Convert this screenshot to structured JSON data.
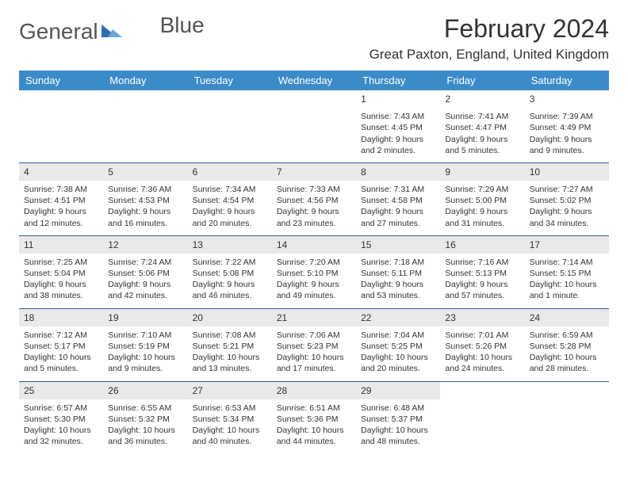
{
  "logo": {
    "textA": "General",
    "textB": "Blue"
  },
  "title": "February 2024",
  "location": "Great Paxton, England, United Kingdom",
  "colors": {
    "header_bg": "#3b8bc8",
    "header_text": "#ffffff",
    "daynum_bg": "#e9e9e9",
    "rule": "#2f5f8f",
    "text": "#333333",
    "logo_accent": "#2f6fb0"
  },
  "dayHeaders": [
    "Sunday",
    "Monday",
    "Tuesday",
    "Wednesday",
    "Thursday",
    "Friday",
    "Saturday"
  ],
  "weeks": [
    [
      {
        "n": "",
        "l1": "",
        "l2": "",
        "l3": "",
        "l4": ""
      },
      {
        "n": "",
        "l1": "",
        "l2": "",
        "l3": "",
        "l4": ""
      },
      {
        "n": "",
        "l1": "",
        "l2": "",
        "l3": "",
        "l4": ""
      },
      {
        "n": "",
        "l1": "",
        "l2": "",
        "l3": "",
        "l4": ""
      },
      {
        "n": "1",
        "l1": "Sunrise: 7:43 AM",
        "l2": "Sunset: 4:45 PM",
        "l3": "Daylight: 9 hours",
        "l4": "and 2 minutes."
      },
      {
        "n": "2",
        "l1": "Sunrise: 7:41 AM",
        "l2": "Sunset: 4:47 PM",
        "l3": "Daylight: 9 hours",
        "l4": "and 5 minutes."
      },
      {
        "n": "3",
        "l1": "Sunrise: 7:39 AM",
        "l2": "Sunset: 4:49 PM",
        "l3": "Daylight: 9 hours",
        "l4": "and 9 minutes."
      }
    ],
    [
      {
        "n": "4",
        "l1": "Sunrise: 7:38 AM",
        "l2": "Sunset: 4:51 PM",
        "l3": "Daylight: 9 hours",
        "l4": "and 12 minutes."
      },
      {
        "n": "5",
        "l1": "Sunrise: 7:36 AM",
        "l2": "Sunset: 4:53 PM",
        "l3": "Daylight: 9 hours",
        "l4": "and 16 minutes."
      },
      {
        "n": "6",
        "l1": "Sunrise: 7:34 AM",
        "l2": "Sunset: 4:54 PM",
        "l3": "Daylight: 9 hours",
        "l4": "and 20 minutes."
      },
      {
        "n": "7",
        "l1": "Sunrise: 7:33 AM",
        "l2": "Sunset: 4:56 PM",
        "l3": "Daylight: 9 hours",
        "l4": "and 23 minutes."
      },
      {
        "n": "8",
        "l1": "Sunrise: 7:31 AM",
        "l2": "Sunset: 4:58 PM",
        "l3": "Daylight: 9 hours",
        "l4": "and 27 minutes."
      },
      {
        "n": "9",
        "l1": "Sunrise: 7:29 AM",
        "l2": "Sunset: 5:00 PM",
        "l3": "Daylight: 9 hours",
        "l4": "and 31 minutes."
      },
      {
        "n": "10",
        "l1": "Sunrise: 7:27 AM",
        "l2": "Sunset: 5:02 PM",
        "l3": "Daylight: 9 hours",
        "l4": "and 34 minutes."
      }
    ],
    [
      {
        "n": "11",
        "l1": "Sunrise: 7:25 AM",
        "l2": "Sunset: 5:04 PM",
        "l3": "Daylight: 9 hours",
        "l4": "and 38 minutes."
      },
      {
        "n": "12",
        "l1": "Sunrise: 7:24 AM",
        "l2": "Sunset: 5:06 PM",
        "l3": "Daylight: 9 hours",
        "l4": "and 42 minutes."
      },
      {
        "n": "13",
        "l1": "Sunrise: 7:22 AM",
        "l2": "Sunset: 5:08 PM",
        "l3": "Daylight: 9 hours",
        "l4": "and 46 minutes."
      },
      {
        "n": "14",
        "l1": "Sunrise: 7:20 AM",
        "l2": "Sunset: 5:10 PM",
        "l3": "Daylight: 9 hours",
        "l4": "and 49 minutes."
      },
      {
        "n": "15",
        "l1": "Sunrise: 7:18 AM",
        "l2": "Sunset: 5:11 PM",
        "l3": "Daylight: 9 hours",
        "l4": "and 53 minutes."
      },
      {
        "n": "16",
        "l1": "Sunrise: 7:16 AM",
        "l2": "Sunset: 5:13 PM",
        "l3": "Daylight: 9 hours",
        "l4": "and 57 minutes."
      },
      {
        "n": "17",
        "l1": "Sunrise: 7:14 AM",
        "l2": "Sunset: 5:15 PM",
        "l3": "Daylight: 10 hours",
        "l4": "and 1 minute."
      }
    ],
    [
      {
        "n": "18",
        "l1": "Sunrise: 7:12 AM",
        "l2": "Sunset: 5:17 PM",
        "l3": "Daylight: 10 hours",
        "l4": "and 5 minutes."
      },
      {
        "n": "19",
        "l1": "Sunrise: 7:10 AM",
        "l2": "Sunset: 5:19 PM",
        "l3": "Daylight: 10 hours",
        "l4": "and 9 minutes."
      },
      {
        "n": "20",
        "l1": "Sunrise: 7:08 AM",
        "l2": "Sunset: 5:21 PM",
        "l3": "Daylight: 10 hours",
        "l4": "and 13 minutes."
      },
      {
        "n": "21",
        "l1": "Sunrise: 7:06 AM",
        "l2": "Sunset: 5:23 PM",
        "l3": "Daylight: 10 hours",
        "l4": "and 17 minutes."
      },
      {
        "n": "22",
        "l1": "Sunrise: 7:04 AM",
        "l2": "Sunset: 5:25 PM",
        "l3": "Daylight: 10 hours",
        "l4": "and 20 minutes."
      },
      {
        "n": "23",
        "l1": "Sunrise: 7:01 AM",
        "l2": "Sunset: 5:26 PM",
        "l3": "Daylight: 10 hours",
        "l4": "and 24 minutes."
      },
      {
        "n": "24",
        "l1": "Sunrise: 6:59 AM",
        "l2": "Sunset: 5:28 PM",
        "l3": "Daylight: 10 hours",
        "l4": "and 28 minutes."
      }
    ],
    [
      {
        "n": "25",
        "l1": "Sunrise: 6:57 AM",
        "l2": "Sunset: 5:30 PM",
        "l3": "Daylight: 10 hours",
        "l4": "and 32 minutes."
      },
      {
        "n": "26",
        "l1": "Sunrise: 6:55 AM",
        "l2": "Sunset: 5:32 PM",
        "l3": "Daylight: 10 hours",
        "l4": "and 36 minutes."
      },
      {
        "n": "27",
        "l1": "Sunrise: 6:53 AM",
        "l2": "Sunset: 5:34 PM",
        "l3": "Daylight: 10 hours",
        "l4": "and 40 minutes."
      },
      {
        "n": "28",
        "l1": "Sunrise: 6:51 AM",
        "l2": "Sunset: 5:36 PM",
        "l3": "Daylight: 10 hours",
        "l4": "and 44 minutes."
      },
      {
        "n": "29",
        "l1": "Sunrise: 6:48 AM",
        "l2": "Sunset: 5:37 PM",
        "l3": "Daylight: 10 hours",
        "l4": "and 48 minutes."
      },
      {
        "n": "",
        "l1": "",
        "l2": "",
        "l3": "",
        "l4": ""
      },
      {
        "n": "",
        "l1": "",
        "l2": "",
        "l3": "",
        "l4": ""
      }
    ]
  ]
}
